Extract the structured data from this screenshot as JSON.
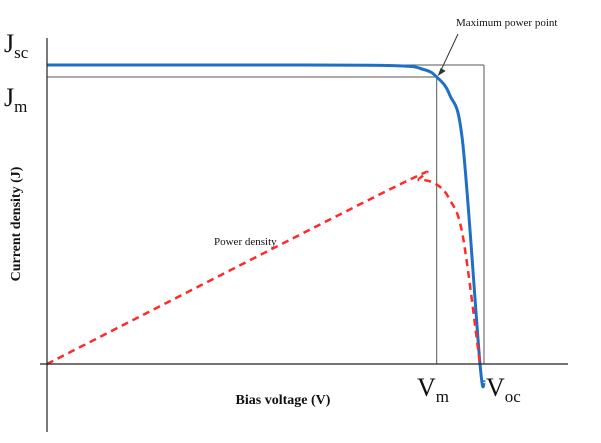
{
  "chart_data": {
    "type": "line",
    "xlabel": "Bias voltage (V)",
    "ylabel": "Current density (J)",
    "x_ticks": [
      {
        "main": "V",
        "sub": "m"
      },
      {
        "main": "V",
        "sub": "oc"
      }
    ],
    "y_ticks": [
      {
        "main": "J",
        "sub": "sc"
      },
      {
        "main": "J",
        "sub": "m"
      }
    ],
    "annotations": {
      "max_power_point": "Maximum power point",
      "power_density": "Power density"
    },
    "series": [
      {
        "style": "solid",
        "color": "#1f6fc4",
        "points": [
          [
            0,
            1.0
          ],
          [
            0.5,
            1.0
          ],
          [
            0.8,
            0.998
          ],
          [
            0.87,
            0.985
          ],
          [
            0.9,
            0.96
          ],
          [
            0.93,
            0.9
          ],
          [
            0.96,
            0.74
          ],
          [
            1.0,
            0.0
          ],
          [
            1.01,
            -0.06
          ]
        ]
      },
      {
        "style": "dashed",
        "color": "#ff2a2a",
        "points": [
          [
            0,
            0.0
          ],
          [
            0.8,
            0.59
          ],
          [
            0.86,
            0.615
          ],
          [
            0.9,
            0.6
          ],
          [
            0.93,
            0.55
          ],
          [
            0.96,
            0.43
          ],
          [
            1.0,
            0.0
          ]
        ]
      }
    ],
    "max_power_point": {
      "x": 0.9,
      "y": 0.96
    },
    "xlim": [
      0,
      1.1
    ],
    "ylim": [
      -0.14,
      1.12
    ],
    "grid": false,
    "colors": {
      "axes": "#222222",
      "guide": "#555555",
      "pointer": "#333333"
    }
  }
}
